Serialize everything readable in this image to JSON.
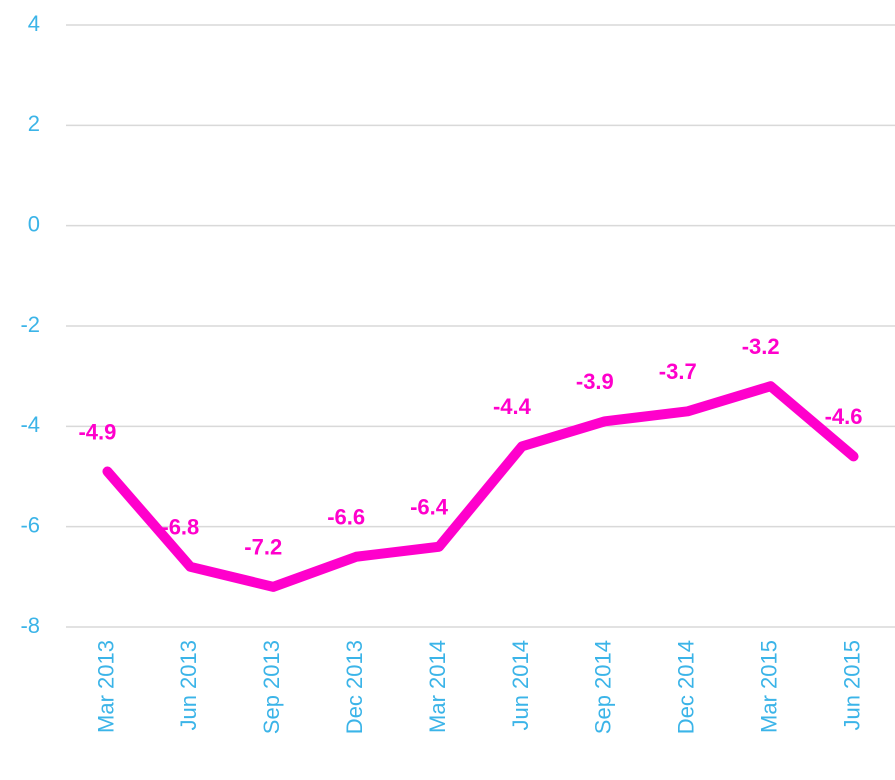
{
  "chart_data": {
    "type": "line",
    "categories": [
      "Mar 2013",
      "Jun 2013",
      "Sep 2013",
      "Dec 2013",
      "Mar 2014",
      "Jun 2014",
      "Sep 2014",
      "Dec 2014",
      "Mar 2015",
      "Jun 2015"
    ],
    "values": [
      -4.9,
      -6.8,
      -7.2,
      -6.6,
      -6.4,
      -4.4,
      -3.9,
      -3.7,
      -3.2,
      -4.6
    ],
    "color": "#ff00cc",
    "ylim": [
      -8,
      4
    ],
    "yticks": [
      -8,
      -6,
      -4,
      -2,
      0,
      2,
      4
    ],
    "grid": true
  }
}
